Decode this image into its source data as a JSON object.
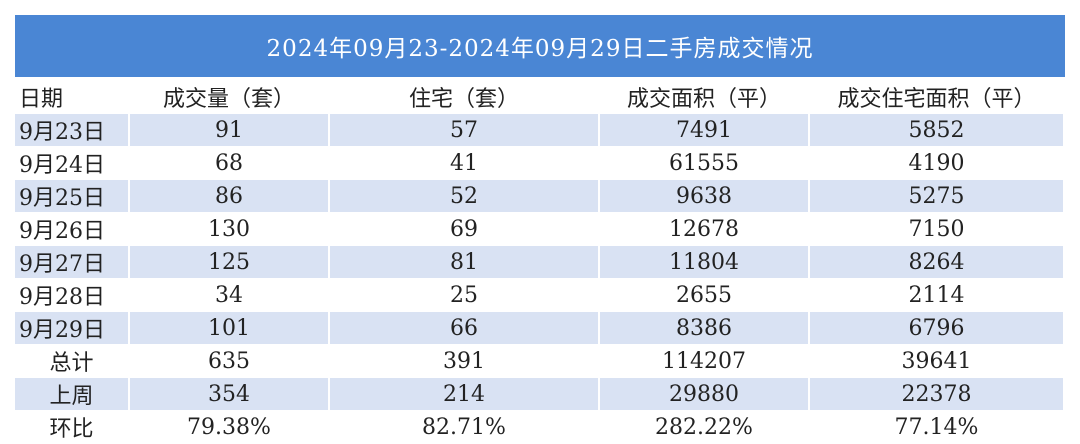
{
  "title": "2024年09月23-2024年09月29日二手房成交情况",
  "table": {
    "header": [
      "日期",
      "成交量（套）",
      "住宅（套）",
      "成交面积（平）",
      "成交住宅面积（平）"
    ],
    "rows": [
      [
        "9月23日",
        91,
        57,
        7491,
        5852
      ],
      [
        "9月24日",
        68,
        41,
        61555,
        4190
      ],
      [
        "9月25日",
        86,
        52,
        9638,
        5275
      ],
      [
        "9月26日",
        130,
        69,
        12678,
        7150
      ],
      [
        "9月27日",
        125,
        81,
        11804,
        8264
      ],
      [
        "9月28日",
        34,
        25,
        2655,
        2114
      ],
      [
        "9月29日",
        101,
        66,
        8386,
        6796
      ],
      [
        "总计",
        635,
        391,
        114207,
        39641
      ],
      [
        "上周",
        354,
        214,
        29880,
        22378
      ],
      [
        "环比",
        "79.38%",
        "82.71%",
        "282.22%",
        "77.14%"
      ]
    ]
  }
}
